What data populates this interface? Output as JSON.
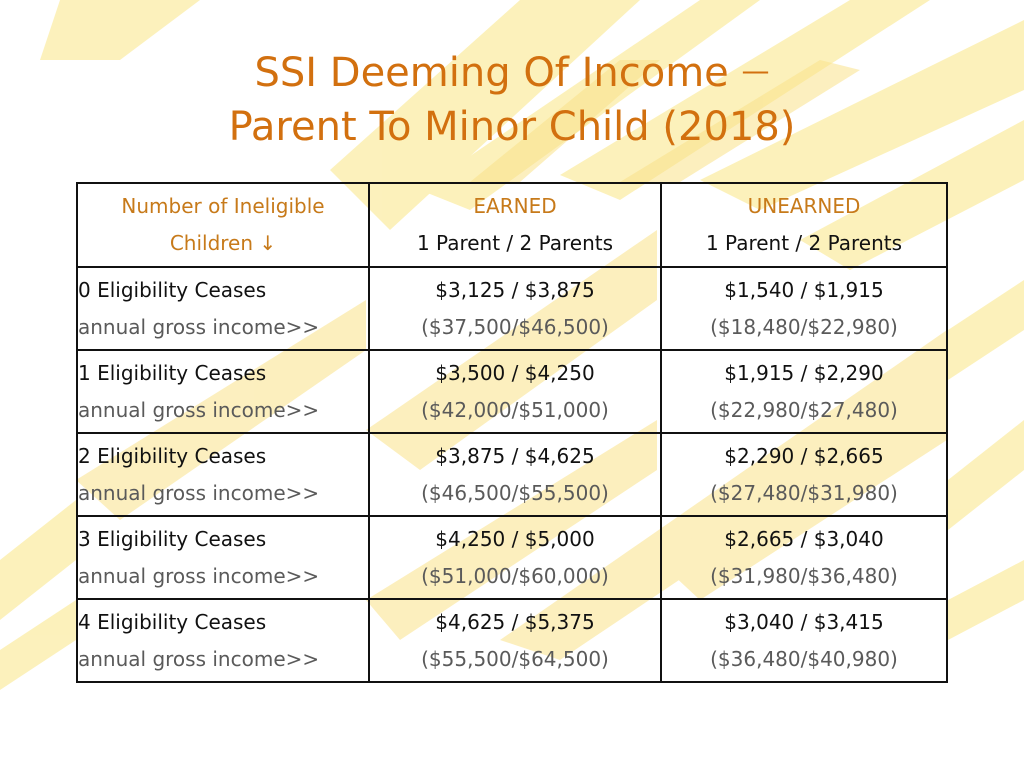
{
  "title": {
    "line1": "SSI Deeming Of Income",
    "dash": "—",
    "line2": "Parent To Minor Child (2018)"
  },
  "colors": {
    "title": "#d2700f",
    "brush": "#fcefb0",
    "header_text": "#c77a1a"
  },
  "table": {
    "headers": [
      {
        "top": "Number of Ineligible",
        "bottom": "Children ↓"
      },
      {
        "top": "EARNED",
        "bottom": "1 Parent / 2 Parents"
      },
      {
        "top": "UNEARNED",
        "bottom": "1 Parent / 2 Parents"
      }
    ],
    "rows": [
      {
        "label": "0  Eligibility Ceases",
        "sub": "annual gross income>>",
        "earned": "$3,125 / $3,875",
        "earned_annual": "($37,500/$46,500)",
        "unearned": "$1,540 / $1,915",
        "unearned_annual": "($18,480/$22,980)"
      },
      {
        "label": "1  Eligibility Ceases",
        "sub": "annual gross income>>",
        "earned": "$3,500 / $4,250",
        "earned_annual": "($42,000/$51,000)",
        "unearned": "$1,915 / $2,290",
        "unearned_annual": "($22,980/$27,480)"
      },
      {
        "label": "2  Eligibility Ceases",
        "sub": "annual gross income>>",
        "earned": "$3,875 / $4,625",
        "earned_annual": "($46,500/$55,500)",
        "unearned": "$2,290 / $2,665",
        "unearned_annual": "($27,480/$31,980)"
      },
      {
        "label": "3  Eligibility Ceases",
        "sub": "annual gross income>>",
        "earned": "$4,250 / $5,000",
        "earned_annual": "($51,000/$60,000)",
        "unearned": "$2,665 / $3,040",
        "unearned_annual": "($31,980/$36,480)"
      },
      {
        "label": "4  Eligibility Ceases",
        "sub": "annual gross income>>",
        "earned": "$4,625 / $5,375",
        "earned_annual": "($55,500/$64,500)",
        "unearned": "$3,040 / $3,415",
        "unearned_annual": "($36,480/$40,980)"
      }
    ]
  }
}
